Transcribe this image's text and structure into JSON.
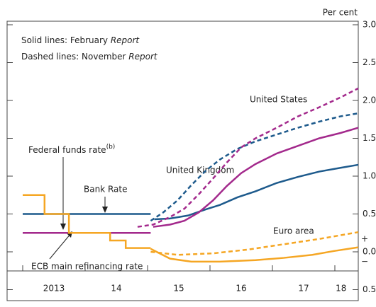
{
  "chart_data": {
    "type": "line",
    "unit_label": "Per cent",
    "notes": [
      {
        "text": "Solid lines:  February ",
        "emph": "Report"
      },
      {
        "text": "Dashed lines:  November ",
        "emph": "Report"
      }
    ],
    "xlim": [
      2012.75,
      2018.375
    ],
    "xtick_marks": [
      2013,
      2014,
      2015,
      2016,
      2017,
      2018
    ],
    "xticks": [
      {
        "value": 2013.5,
        "label": "2013"
      },
      {
        "value": 2014.5,
        "label": "14"
      },
      {
        "value": 2015.5,
        "label": "15"
      },
      {
        "value": 2016.5,
        "label": "16"
      },
      {
        "value": 2017.5,
        "label": "17"
      },
      {
        "value": 2018.1,
        "label": "18"
      }
    ],
    "ylim": [
      -0.5,
      3.0
    ],
    "yticks": [
      {
        "value": -0.5,
        "label": "0.5"
      },
      {
        "value": 0,
        "label": "0.0"
      },
      {
        "value": 0.5,
        "label": "0.5"
      },
      {
        "value": 1,
        "label": "1.0"
      },
      {
        "value": 1.5,
        "label": "1.5"
      },
      {
        "value": 2,
        "label": "2.0"
      },
      {
        "value": 2.5,
        "label": "2.5"
      },
      {
        "value": 3,
        "label": "3.0"
      }
    ],
    "sign_labels": [
      "+",
      "−"
    ],
    "series": [
      {
        "color": "#1d5a8c",
        "style": "solid",
        "x": [
          2013.0,
          2015.05
        ],
        "values": [
          0.5,
          0.5
        ]
      },
      {
        "color": "#1d5a8c",
        "style": "solid",
        "x": [
          2015.11,
          2015.36,
          2015.65,
          2015.93,
          2016.16,
          2016.44,
          2016.73,
          2017.07,
          2017.41,
          2017.75,
          2018.09,
          2018.375
        ],
        "values": [
          0.43,
          0.44,
          0.48,
          0.56,
          0.62,
          0.72,
          0.8,
          0.91,
          0.99,
          1.06,
          1.11,
          1.15
        ]
      },
      {
        "color": "#1d5a8c",
        "style": "dashed",
        "x": [
          2015.05,
          2015.25,
          2015.48,
          2015.7,
          2015.93,
          2016.16,
          2016.44,
          2016.73,
          2017.07,
          2017.41,
          2017.75,
          2018.09,
          2018.375
        ],
        "values": [
          0.41,
          0.52,
          0.68,
          0.88,
          1.07,
          1.22,
          1.36,
          1.46,
          1.55,
          1.64,
          1.72,
          1.79,
          1.83
        ]
      },
      {
        "color": "#a3298c",
        "style": "solid",
        "x": [
          2013.0,
          2015.05
        ],
        "values": [
          0.25,
          0.25
        ]
      },
      {
        "color": "#a3298c",
        "style": "solid",
        "x": [
          2015.09,
          2015.36,
          2015.59,
          2015.82,
          2016.05,
          2016.27,
          2016.5,
          2016.73,
          2017.07,
          2017.41,
          2017.75,
          2018.09,
          2018.375
        ],
        "values": [
          0.33,
          0.36,
          0.41,
          0.52,
          0.68,
          0.87,
          1.04,
          1.16,
          1.3,
          1.4,
          1.5,
          1.57,
          1.64
        ]
      },
      {
        "color": "#a3298c",
        "style": "dashed",
        "x": [
          2014.84,
          2015.09,
          2015.36,
          2015.59,
          2015.82,
          2016.05,
          2016.27,
          2016.5,
          2016.73,
          2017.07,
          2017.41,
          2017.75,
          2018.09,
          2018.375
        ],
        "values": [
          0.33,
          0.36,
          0.46,
          0.57,
          0.76,
          0.97,
          1.18,
          1.38,
          1.5,
          1.64,
          1.79,
          1.91,
          2.04,
          2.16
        ]
      },
      {
        "color": "#f5a623",
        "style": "solid",
        "x": [
          2013.0,
          2013.35,
          2013.35,
          2013.74,
          2013.74,
          2014.4,
          2014.4,
          2014.65,
          2014.65,
          2015.05
        ],
        "values": [
          0.75,
          0.75,
          0.5,
          0.5,
          0.25,
          0.25,
          0.15,
          0.15,
          0.05,
          0.05
        ]
      },
      {
        "color": "#f5a623",
        "style": "solid",
        "x": [
          2015.05,
          2015.36,
          2015.7,
          2016.16,
          2016.73,
          2017.18,
          2017.64,
          2017.98,
          2018.375
        ],
        "values": [
          0.04,
          -0.09,
          -0.13,
          -0.13,
          -0.11,
          -0.08,
          -0.04,
          0.01,
          0.06
        ]
      },
      {
        "color": "#f5a623",
        "style": "dashed",
        "x": [
          2015.05,
          2015.48,
          2016.05,
          2016.61,
          2017.18,
          2017.75,
          2018.375
        ],
        "values": [
          0.0,
          -0.04,
          -0.02,
          0.03,
          0.1,
          0.17,
          0.26
        ]
      }
    ],
    "annotations": [
      {
        "text": "Federal funds rate",
        "sup": "(b)"
      },
      {
        "text": "Bank Rate"
      },
      {
        "text": "ECB main refinancing rate"
      },
      {
        "text": "United Kingdom"
      },
      {
        "text": "United States"
      },
      {
        "text": "Euro area"
      }
    ]
  }
}
